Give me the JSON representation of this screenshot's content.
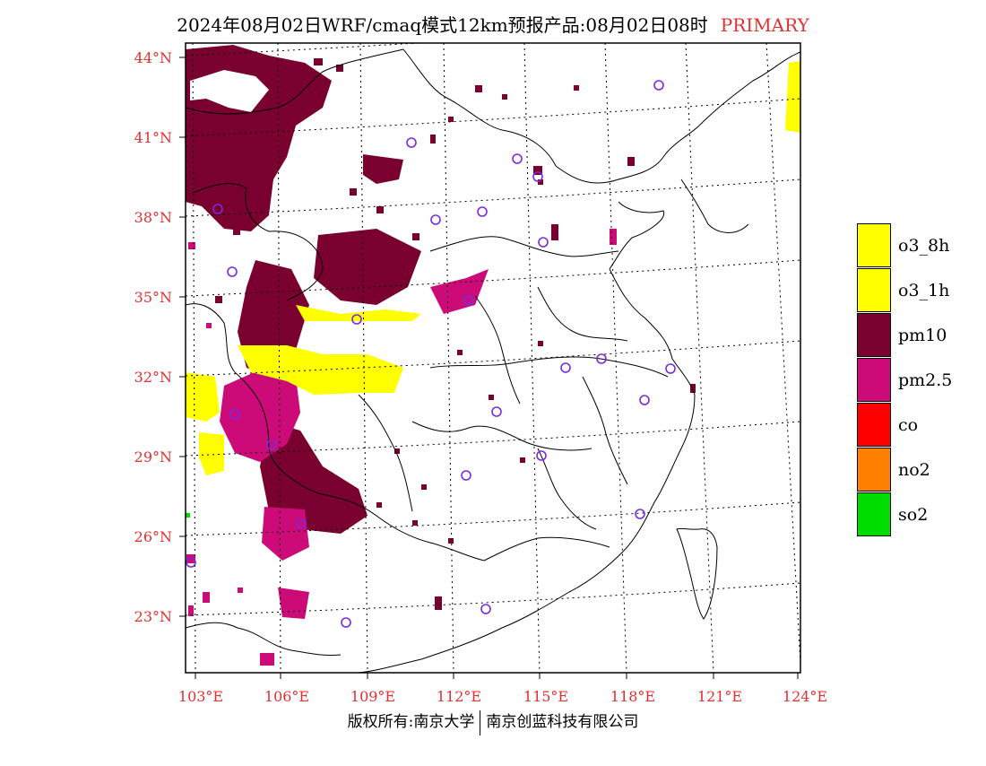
{
  "title": {
    "main": "2024年08月02日WRF/cmaq模式12km预报产品:08月02日08时",
    "mode": "PRIMARY"
  },
  "map": {
    "lat_labels": [
      "44°N",
      "41°N",
      "38°N",
      "35°N",
      "32°N",
      "29°N",
      "26°N",
      "23°N"
    ],
    "lon_labels": [
      "103°E",
      "106°E",
      "109°E",
      "112°E",
      "115°E",
      "118°E",
      "121°E",
      "124°E"
    ],
    "label_color": "#e03030"
  },
  "legend": {
    "items": [
      {
        "label": "o3_8h",
        "color": "#ffff00"
      },
      {
        "label": "o3_1h",
        "color": "#ffff00"
      },
      {
        "label": "pm10",
        "color": "#7a0030"
      },
      {
        "label": "pm2.5",
        "color": "#cc0a78"
      },
      {
        "label": "co",
        "color": "#ff0000"
      },
      {
        "label": "no2",
        "color": "#ff8000"
      },
      {
        "label": "so2",
        "color": "#00dd00"
      }
    ]
  },
  "footer": {
    "left": "版权所有:南京大学",
    "right": "南京创蓝科技有限公司"
  }
}
